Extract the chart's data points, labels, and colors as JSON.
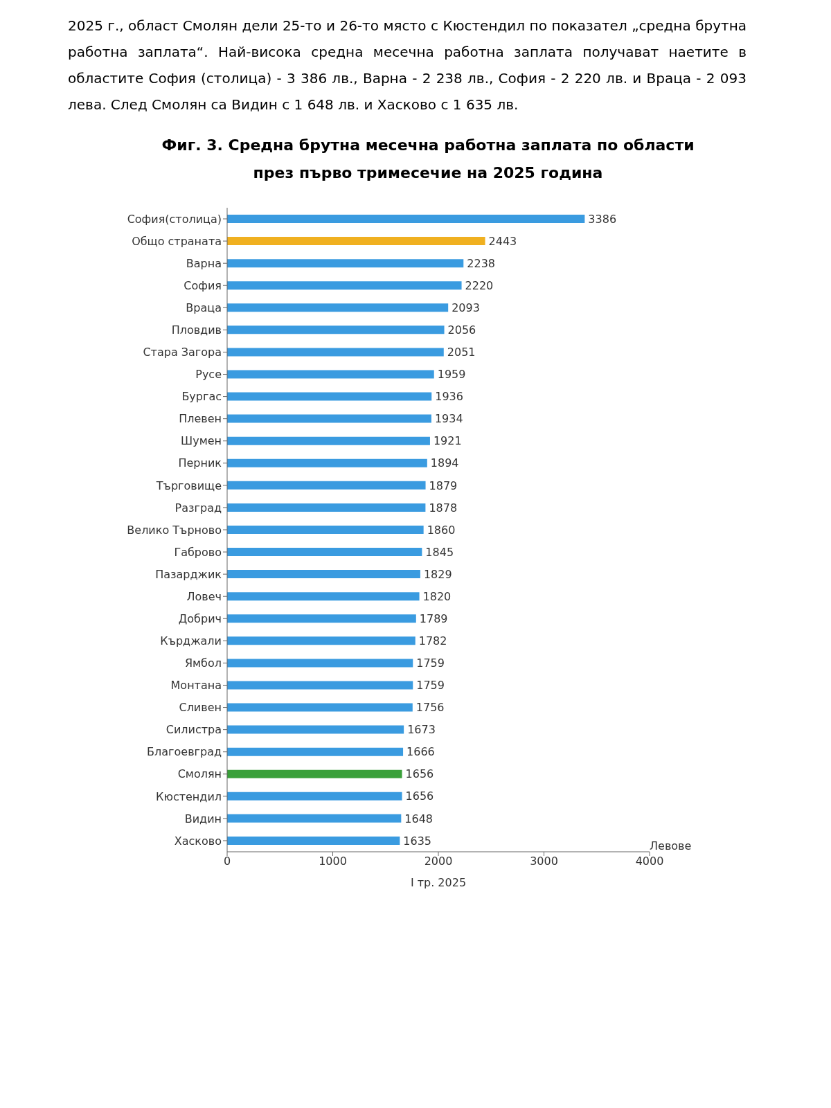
{
  "chart_data": {
    "type": "bar",
    "orientation": "horizontal",
    "title": "Фиг. 3. Средна брутна месечна работна заплата по области през първо тримесечие на 2025 година",
    "xlabel": "I тр. 2025",
    "annotations": [
      "2025 г., област Смолян дели 25-то и 26-то място с Кюстендил по показател „средна брутна работна заплата“. Най-висока средна месечна работна заплата получават наетите в областите София (столица) - 3 386 лв., Варна - 2 238 лв., София - 2 220 лв. и Враца - 2 093 лева. След Смолян са Видин с 1 648 лв. и Хасково с 1 635 лв.",
      "Левове"
    ],
    "categories": [
      "София(столица)",
      "Общо страната",
      "Варна",
      "София",
      "Враца",
      "Пловдив",
      "Стара Загора",
      "Русе",
      "Бургас",
      "Плевен",
      "Шумен",
      "Перник",
      "Търговище",
      "Разград",
      "Велико Търново",
      "Габрово",
      "Пазарджик",
      "Ловеч",
      "Добрич",
      "Кърджали",
      "Ямбол",
      "Монтана",
      "Сливен",
      "Силистра",
      "Благоевград",
      "Смолян",
      "Кюстендил",
      "Видин",
      "Хасково"
    ],
    "values": [
      3386,
      2443,
      2238,
      2220,
      2093,
      2056,
      2051,
      1959,
      1936,
      1934,
      1921,
      1894,
      1879,
      1878,
      1860,
      1845,
      1829,
      1820,
      1789,
      1782,
      1759,
      1759,
      1756,
      1673,
      1666,
      1656,
      1656,
      1648,
      1635
    ],
    "colors": [
      "#3a9be0",
      "#f0b020",
      "#3a9be0",
      "#3a9be0",
      "#3a9be0",
      "#3a9be0",
      "#3a9be0",
      "#3a9be0",
      "#3a9be0",
      "#3a9be0",
      "#3a9be0",
      "#3a9be0",
      "#3a9be0",
      "#3a9be0",
      "#3a9be0",
      "#3a9be0",
      "#3a9be0",
      "#3a9be0",
      "#3a9be0",
      "#3a9be0",
      "#3a9be0",
      "#3a9be0",
      "#3a9be0",
      "#3a9be0",
      "#3a9be0",
      "#3aa03a",
      "#3a9be0",
      "#3a9be0",
      "#3a9be0"
    ],
    "xlim": [
      0,
      4000
    ],
    "xticks": [
      0,
      1000,
      2000,
      3000,
      4000
    ],
    "data_labels": true,
    "grid": false,
    "legend": false
  }
}
